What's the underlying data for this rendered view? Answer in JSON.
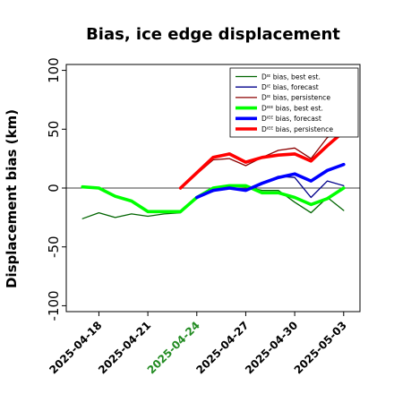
{
  "chart_data": {
    "type": "line",
    "title": "Bias, ice edge displacement",
    "ylabel": "Displacement bias (km)",
    "xlabel": "",
    "ylim": [
      -105,
      105
    ],
    "xlim": [
      "2025-04-16",
      "2025-05-04"
    ],
    "yticks": [
      -100,
      -50,
      0,
      50,
      100
    ],
    "xticks": [
      "2025-04-18",
      "2025-04-21",
      "2025-04-24",
      "2025-04-27",
      "2025-04-30",
      "2025-05-03"
    ],
    "xtick_colors": [
      "#000000",
      "#000000",
      "#228b22",
      "#000000",
      "#000000",
      "#000000"
    ],
    "zero_line": true,
    "grid": false,
    "legend_position": "top-right",
    "series": [
      {
        "name": "Dᴵᴱ bias, best est.",
        "color": "#006400",
        "width": 1.3,
        "x": [
          "2025-04-17",
          "2025-04-18",
          "2025-04-19",
          "2025-04-20",
          "2025-04-21",
          "2025-04-22",
          "2025-04-23",
          "2025-04-24",
          "2025-04-25",
          "2025-04-26",
          "2025-04-27",
          "2025-04-28",
          "2025-04-29",
          "2025-04-30",
          "2025-05-01",
          "2025-05-02",
          "2025-05-03"
        ],
        "values": [
          -26,
          -21,
          -25,
          -22,
          -24,
          -22,
          -21,
          -8,
          -3,
          2,
          1,
          -2,
          -2,
          -12,
          -21,
          -8,
          -19
        ]
      },
      {
        "name": "Dᴵᴱ bias, forecast",
        "color": "#00008b",
        "width": 1.3,
        "x": [
          "2025-04-24",
          "2025-04-25",
          "2025-04-26",
          "2025-04-27",
          "2025-04-28",
          "2025-04-29",
          "2025-04-30",
          "2025-05-01",
          "2025-05-02",
          "2025-05-03"
        ],
        "values": [
          -8,
          -2,
          0,
          -1,
          4,
          10,
          9,
          -8,
          6,
          2
        ]
      },
      {
        "name": "Dᴵᴱ bias, persistence",
        "color": "#8b0000",
        "width": 1.3,
        "x": [
          "2025-04-23",
          "2025-04-24",
          "2025-04-25",
          "2025-04-26",
          "2025-04-27",
          "2025-04-28",
          "2025-04-29",
          "2025-04-30",
          "2025-05-01",
          "2025-05-02",
          "2025-05-03"
        ],
        "values": [
          0,
          12,
          24,
          25,
          19,
          26,
          32,
          34,
          25,
          43,
          50
        ]
      },
      {
        "name": "Dᴵᴱᴱ bias, best est.",
        "color": "#00ff00",
        "width": 3.6,
        "x": [
          "2025-04-17",
          "2025-04-18",
          "2025-04-19",
          "2025-04-20",
          "2025-04-21",
          "2025-04-22",
          "2025-04-23",
          "2025-04-24",
          "2025-04-25",
          "2025-04-26",
          "2025-04-27",
          "2025-04-28",
          "2025-04-29",
          "2025-04-30",
          "2025-05-01",
          "2025-05-02",
          "2025-05-03"
        ],
        "values": [
          1,
          0,
          -7,
          -11,
          -20,
          -20,
          -20,
          -8,
          0,
          2,
          2,
          -4,
          -4,
          -8,
          -14,
          -9,
          0
        ]
      },
      {
        "name": "Dᴵᴱᴱ bias, forecast",
        "color": "#0000ff",
        "width": 3.6,
        "x": [
          "2025-04-24",
          "2025-04-25",
          "2025-04-26",
          "2025-04-27",
          "2025-04-28",
          "2025-04-29",
          "2025-04-30",
          "2025-05-01",
          "2025-05-02",
          "2025-05-03"
        ],
        "values": [
          -8,
          -2,
          0,
          -2,
          4,
          9,
          12,
          6,
          15,
          20
        ]
      },
      {
        "name": "Dᴵᴱᴱ bias, persistence",
        "color": "#ff0000",
        "width": 3.6,
        "x": [
          "2025-04-23",
          "2025-04-24",
          "2025-04-25",
          "2025-04-26",
          "2025-04-27",
          "2025-04-28",
          "2025-04-29",
          "2025-04-30",
          "2025-05-01",
          "2025-05-02",
          "2025-05-03"
        ],
        "values": [
          0,
          13,
          26,
          29,
          22,
          26,
          28,
          29,
          23,
          36,
          48
        ]
      }
    ]
  }
}
